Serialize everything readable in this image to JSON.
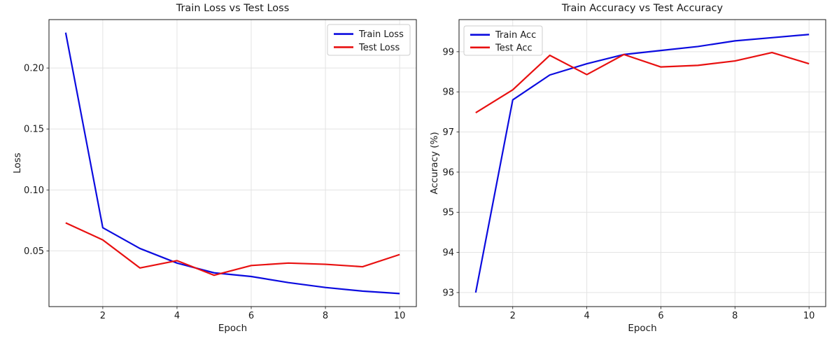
{
  "figure": {
    "background": "#ffffff",
    "text_color": "#1a1a1a",
    "grid_color": "#e3e3e3",
    "spine_color": "#1a1a1a",
    "legend_border_color": "#cccccc"
  },
  "chart_data": [
    {
      "type": "line",
      "title": "Train Loss vs Test Loss",
      "xlabel": "Epoch",
      "ylabel": "Loss",
      "x": [
        1,
        2,
        3,
        4,
        5,
        6,
        7,
        8,
        9,
        10
      ],
      "series": [
        {
          "name": "Train Loss",
          "color": "#0b0bdf",
          "values": [
            0.229,
            0.069,
            0.052,
            0.04,
            0.032,
            0.029,
            0.024,
            0.02,
            0.017,
            0.015
          ]
        },
        {
          "name": "Test Loss",
          "color": "#e81010",
          "values": [
            0.073,
            0.059,
            0.036,
            0.042,
            0.03,
            0.038,
            0.04,
            0.039,
            0.037,
            0.047
          ]
        }
      ],
      "xlim": [
        0.55,
        10.45
      ],
      "ylim": [
        0.0043,
        0.2397
      ],
      "xticks": [
        2,
        4,
        6,
        8,
        10
      ],
      "xtick_labels": [
        "2",
        "4",
        "6",
        "8",
        "10"
      ],
      "yticks": [
        0.05,
        0.1,
        0.15,
        0.2
      ],
      "ytick_labels": [
        "0.05",
        "0.10",
        "0.15",
        "0.20"
      ],
      "grid": true,
      "legend_position": "upper-right"
    },
    {
      "type": "line",
      "title": "Train Accuracy vs Test Accuracy",
      "xlabel": "Epoch",
      "ylabel": "Accuracy (%)",
      "x": [
        1,
        2,
        3,
        4,
        5,
        6,
        7,
        8,
        9,
        10
      ],
      "series": [
        {
          "name": "Train Acc",
          "color": "#0b0bdf",
          "values": [
            93.0,
            97.8,
            98.42,
            98.7,
            98.93,
            99.03,
            99.13,
            99.27,
            99.35,
            99.43
          ]
        },
        {
          "name": "Test Acc",
          "color": "#e81010",
          "values": [
            97.48,
            98.05,
            98.91,
            98.43,
            98.93,
            98.62,
            98.66,
            98.77,
            98.98,
            98.7
          ]
        }
      ],
      "xlim": [
        0.55,
        10.45
      ],
      "ylim": [
        92.65,
        99.8
      ],
      "xticks": [
        2,
        4,
        6,
        8,
        10
      ],
      "xtick_labels": [
        "2",
        "4",
        "6",
        "8",
        "10"
      ],
      "yticks": [
        93,
        94,
        95,
        96,
        97,
        98,
        99
      ],
      "ytick_labels": [
        "93",
        "94",
        "95",
        "96",
        "97",
        "98",
        "99"
      ],
      "grid": true,
      "legend_position": "upper-left"
    }
  ]
}
